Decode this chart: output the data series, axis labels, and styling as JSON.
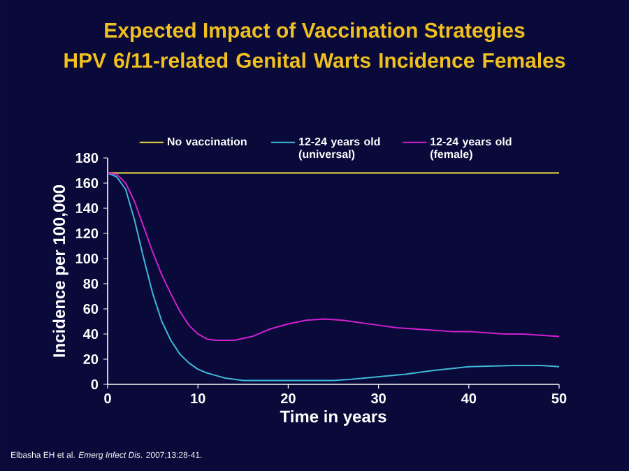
{
  "chart_data": {
    "type": "line",
    "title": "Expected Impact of Vaccination Strategies",
    "subtitle": "HPV 6/11-related Genital Warts Incidence Females",
    "xlabel": "Time in years",
    "ylabel": "Incidence per 100,000",
    "annotations": [
      "Elbasha EH et al. *Emerg Infect Dis*. 2007;13:28-41."
    ],
    "xlim": [
      0,
      50
    ],
    "ylim": [
      0,
      180
    ],
    "xticks": [
      0,
      10,
      20,
      30,
      40,
      50
    ],
    "yticks": [
      0,
      20,
      40,
      60,
      80,
      100,
      120,
      140,
      160,
      180
    ],
    "grid": false,
    "legend": "top",
    "marker": "none",
    "line_style": "solid",
    "series": [
      {
        "name": "No vaccination",
        "color": "#f0e040",
        "x": [
          0,
          50
        ],
        "values": [
          168,
          168
        ]
      },
      {
        "name": "12-24 years old (universal)",
        "color": "#40b8d8",
        "x": [
          0,
          1,
          2,
          3,
          4,
          5,
          6,
          7,
          8,
          9,
          10,
          11,
          12,
          13,
          14,
          15,
          20,
          25,
          27,
          30,
          33,
          36,
          40,
          45,
          48,
          50
        ],
        "values": [
          168,
          165,
          155,
          130,
          100,
          72,
          50,
          35,
          24,
          17,
          12,
          9,
          7,
          5,
          4,
          3,
          3,
          3,
          4,
          6,
          8,
          11,
          14,
          15,
          15,
          14
        ]
      },
      {
        "name": "12-24 years old (female)",
        "color": "#d020d0",
        "x": [
          0,
          1,
          2,
          3,
          4,
          5,
          6,
          7,
          8,
          9,
          10,
          11,
          12,
          14,
          16,
          18,
          20,
          22,
          24,
          26,
          28,
          30,
          32,
          34,
          36,
          38,
          40,
          42,
          44,
          46,
          48,
          50
        ],
        "values": [
          168,
          167,
          160,
          145,
          125,
          105,
          87,
          72,
          58,
          47,
          40,
          36,
          35,
          35,
          38,
          44,
          48,
          51,
          52,
          51,
          49,
          47,
          45,
          44,
          43,
          42,
          42,
          41,
          40,
          40,
          39,
          38
        ]
      }
    ]
  }
}
